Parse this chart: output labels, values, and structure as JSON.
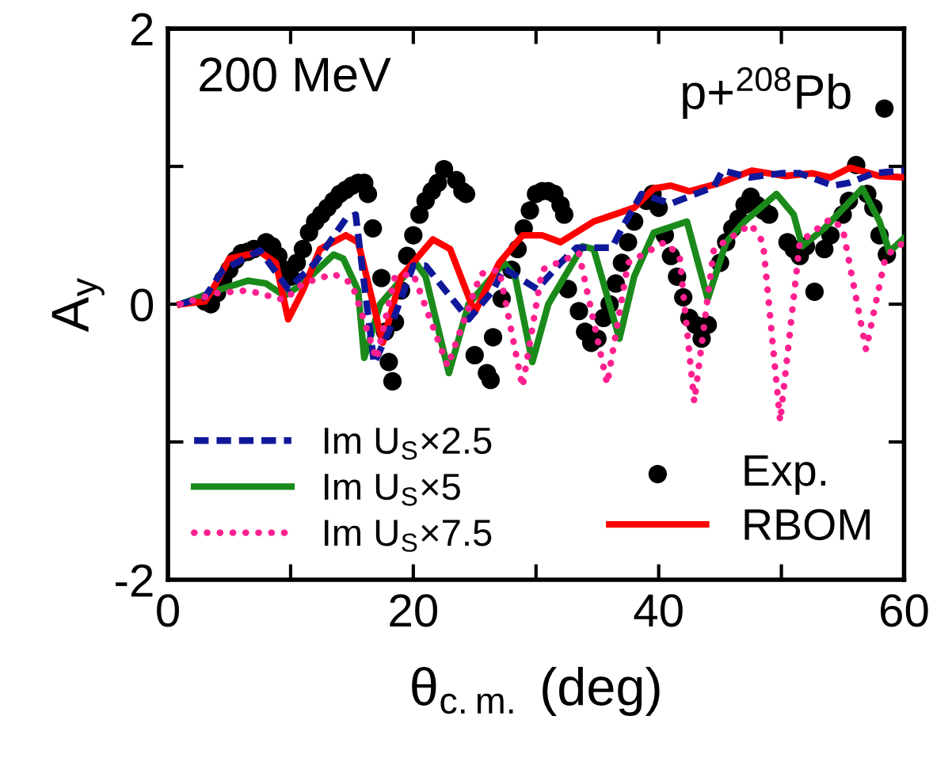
{
  "chart_data": {
    "type": "line",
    "xlabel": "θ$_{c.m.}$ (deg)",
    "ylabel": "A$_{y}$",
    "annotations": [
      "200 MeV",
      "p+$^{208}$Pb"
    ],
    "xlim": [
      0,
      60
    ],
    "ylim": [
      -2,
      2
    ],
    "xticks": [
      0,
      {
        "value": 10,
        "label": null
      },
      20,
      {
        "value": 30,
        "label": null
      },
      40,
      {
        "value": 50,
        "label": null
      },
      60
    ],
    "yticks": [
      -2,
      {
        "value": -1,
        "label": null
      },
      0,
      {
        "value": 1,
        "label": null
      },
      2
    ],
    "grid": false,
    "legend": "bottom",
    "series": [
      {
        "name": "Im U$_{S}$×2.5",
        "line_style": "dashed",
        "color": "#10189a",
        "x": [
          1,
          3,
          4.5,
          7.5,
          9.8,
          12,
          14.5,
          15.3,
          16.8,
          18,
          20,
          21,
          24.5,
          26.5,
          27.4,
          29,
          30.1,
          32,
          33.3,
          36.2,
          37,
          38.6,
          41,
          43,
          44.5,
          45.2,
          47.4,
          50,
          51.5,
          54.2,
          55.5,
          57.5,
          60
        ],
        "values": [
          0,
          0.05,
          0.25,
          0.39,
          0.11,
          0.3,
          0.62,
          0.65,
          -0.43,
          -0.2,
          0.28,
          0.28,
          -0.11,
          0.1,
          0.26,
          0.17,
          0.11,
          0.3,
          0.41,
          0.41,
          0.55,
          0.8,
          0.73,
          0.8,
          0.85,
          0.97,
          0.92,
          0.95,
          0.95,
          0.86,
          0.88,
          0.95,
          0.97
        ]
      },
      {
        "name": "Im U$_{S}$×5",
        "line_style": "solid",
        "color": "#1a8a1a",
        "x": [
          1,
          4,
          6.5,
          8,
          9.5,
          11,
          13.5,
          14.3,
          15.5,
          16,
          17.3,
          20.2,
          21,
          22.9,
          24.5,
          27.4,
          28.3,
          29.7,
          31,
          33.8,
          34.7,
          36.8,
          38,
          39.6,
          42.3,
          44,
          45.5,
          47,
          49.6,
          51,
          51.7,
          53.5,
          56.6,
          58,
          58.8,
          60
        ],
        "values": [
          0,
          0.1,
          0.17,
          0.15,
          0.06,
          0.15,
          0.36,
          0.33,
          0.1,
          -0.39,
          0,
          0.3,
          0.2,
          -0.5,
          0,
          0.3,
          0.2,
          -0.42,
          0,
          0.42,
          0.4,
          -0.25,
          0.2,
          0.52,
          0.6,
          0.04,
          0.45,
          0.6,
          0.8,
          0.65,
          0.42,
          0.55,
          0.84,
          0.6,
          0.38,
          0.48
        ]
      },
      {
        "name": "Im U$_{S}$×7.5",
        "line_style": "dotted",
        "color": "#ff2090",
        "x": [
          1,
          4,
          6.5,
          9.5,
          11,
          13.5,
          15,
          17,
          18.5,
          20,
          22.8,
          25.5,
          27,
          28.9,
          30.5,
          33.5,
          35.8,
          37.5,
          40.5,
          41.7,
          42.9,
          44.5,
          47.5,
          48.5,
          49.9,
          51.5,
          54,
          55,
          56.9,
          58.5,
          60
        ],
        "values": [
          0,
          0.08,
          0.1,
          0.03,
          0.15,
          0.22,
          0.15,
          -0.4,
          0.2,
          0.22,
          -0.45,
          0.22,
          0.25,
          -0.6,
          0.25,
          0.37,
          -0.58,
          0.3,
          0.45,
          0.35,
          -0.71,
          0.4,
          0.58,
          0.45,
          -0.85,
          0.45,
          0.62,
          0.55,
          -0.33,
          0.35,
          0.45
        ]
      },
      {
        "name": "Exp.",
        "type": "scatter",
        "marker": "circle",
        "color": "#000000",
        "x": [
          3,
          3.5,
          4,
          4.5,
          5,
          5.5,
          6,
          6.5,
          7,
          8,
          8.5,
          9,
          9.5,
          10,
          10.5,
          11,
          11.5,
          12,
          12.5,
          13,
          13.5,
          14,
          14.5,
          15,
          15.5,
          16,
          16.3,
          16.7,
          17.4,
          17.7,
          18,
          18.3,
          18.5,
          19,
          19.5,
          20,
          20.5,
          21,
          21.5,
          22,
          22.5,
          23.5,
          24,
          24.3,
          25,
          26,
          26.3,
          26.5,
          27.2,
          28,
          28.5,
          29,
          29.5,
          30,
          30.5,
          31,
          31.5,
          32,
          32.3,
          32.6,
          33.5,
          34,
          34.5,
          35,
          35.5,
          36,
          36.5,
          37,
          37.5,
          38,
          39,
          39.5,
          40,
          40.5,
          41,
          41.5,
          42,
          42.5,
          43,
          43.5,
          44,
          45,
          45.5,
          46,
          46.5,
          47,
          47.5,
          48,
          48.5,
          49,
          50.5,
          51,
          51.5,
          52,
          52.7,
          53.5,
          54,
          55,
          55.5,
          56.1,
          57,
          57.5,
          58,
          58.6,
          58.4
        ],
        "values": [
          0.02,
          0,
          0.08,
          0.18,
          0.25,
          0.32,
          0.37,
          0.38,
          0.4,
          0.45,
          0.42,
          0.35,
          0.25,
          0.2,
          0.3,
          0.4,
          0.52,
          0.6,
          0.65,
          0.7,
          0.75,
          0.8,
          0.83,
          0.86,
          0.88,
          0.88,
          0.8,
          0.55,
          0.19,
          -0.2,
          -0.42,
          -0.56,
          -0.13,
          0.1,
          0.35,
          0.5,
          0.65,
          0.75,
          0.82,
          0.88,
          0.98,
          0.9,
          0.82,
          0.8,
          -0.37,
          -0.5,
          -0.55,
          -0.24,
          0.04,
          0.25,
          0.4,
          0.55,
          0.68,
          0.8,
          0.82,
          0.82,
          0.8,
          0.72,
          0.65,
          0.11,
          -0.05,
          -0.2,
          -0.28,
          -0.25,
          -0.1,
          0,
          0.15,
          0.3,
          0.45,
          0.6,
          0.75,
          0.8,
          0.7,
          0.5,
          0.35,
          0.2,
          0.05,
          -0.1,
          -0.15,
          -0.25,
          -0.15,
          0.3,
          0.45,
          0.55,
          0.62,
          0.72,
          0.78,
          0.72,
          0.68,
          0.65,
          0.45,
          0.4,
          0.35,
          0.42,
          0.09,
          0.4,
          0.5,
          0.65,
          0.75,
          1.01,
          0.8,
          0.7,
          0.5,
          0.36,
          1.42
        ]
      },
      {
        "name": "RBOM",
        "line_style": "solid",
        "color": "#ff0000",
        "x": [
          1,
          3,
          3.6,
          5,
          7.5,
          8.8,
          9.8,
          11,
          12.4,
          14.5,
          15.5,
          17.5,
          19,
          21.6,
          23,
          25,
          27,
          28.9,
          30.5,
          32,
          34.7,
          36.7,
          38,
          39.6,
          41,
          42.5,
          45,
          47.6,
          50.3,
          52.5,
          54,
          55.6,
          58,
          60
        ],
        "values": [
          0,
          0.02,
          0.1,
          0.33,
          0.38,
          0.3,
          -0.11,
          0.1,
          0.4,
          0.5,
          0.45,
          -0.28,
          0.2,
          0.47,
          0.4,
          -0.06,
          0.3,
          0.5,
          0.5,
          0.45,
          0.6,
          0.66,
          0.7,
          0.84,
          0.86,
          0.82,
          0.88,
          0.97,
          0.93,
          0.95,
          0.92,
          0.99,
          0.93,
          0.92
        ]
      }
    ]
  }
}
